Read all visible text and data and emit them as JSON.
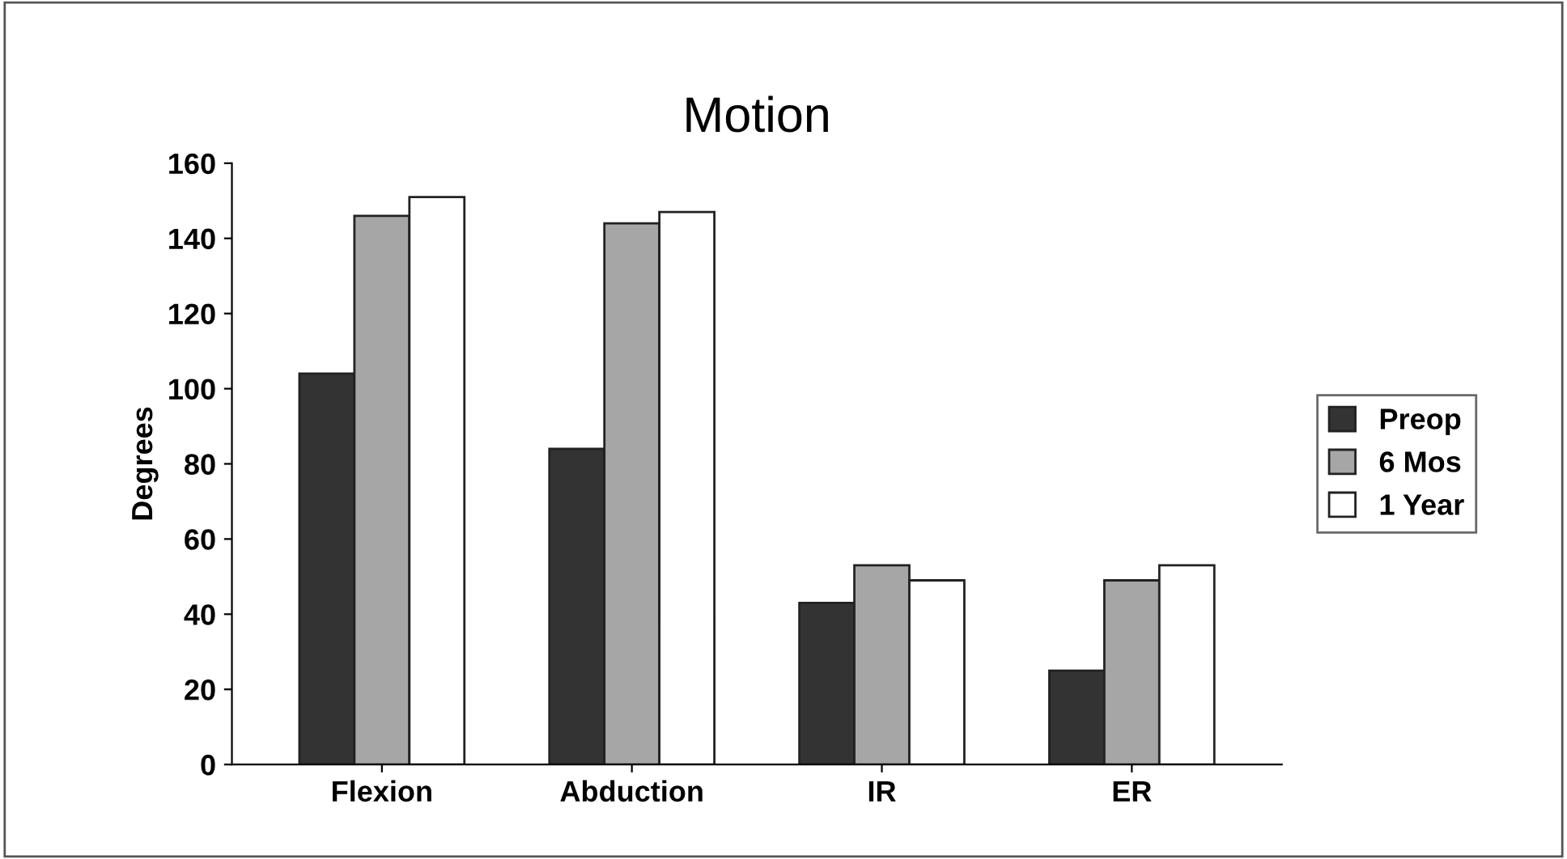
{
  "chart_data": {
    "type": "bar",
    "title": "Motion",
    "ylabel": "Degrees",
    "categories": [
      "Flexion",
      "Abduction",
      "IR",
      "ER"
    ],
    "series": [
      {
        "name": "Preop",
        "color": "#333333",
        "values": [
          104,
          84,
          43,
          25
        ]
      },
      {
        "name": "6 Mos",
        "color": "#a6a6a6",
        "values": [
          146,
          144,
          53,
          49
        ]
      },
      {
        "name": "1 Year",
        "color": "#ffffff",
        "values": [
          151,
          147,
          49,
          53
        ]
      }
    ],
    "ylim": [
      0,
      160
    ],
    "yticks": [
      0,
      20,
      40,
      60,
      80,
      100,
      120,
      140,
      160
    ],
    "grid": false,
    "legend": "right"
  }
}
